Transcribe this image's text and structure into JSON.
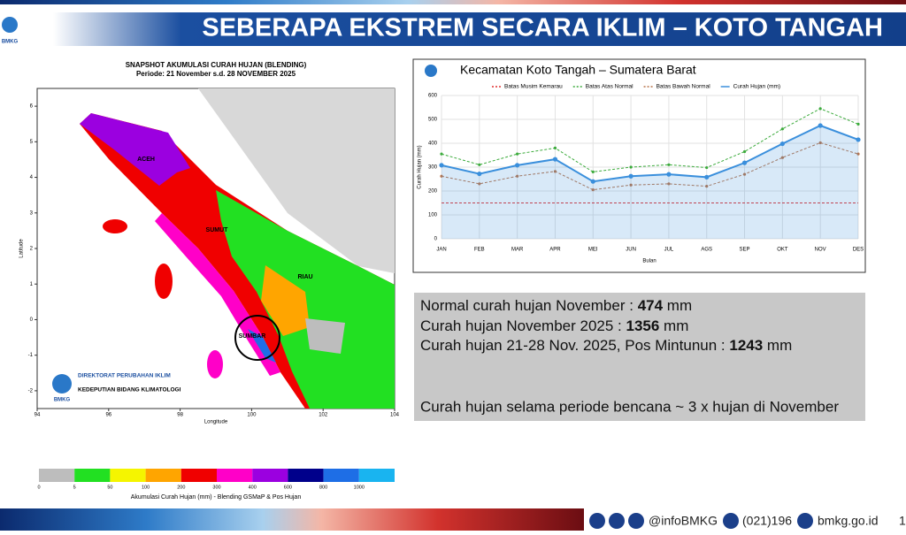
{
  "header": {
    "title": "SEBERAPA EKSTREM SECARA IKLIM – KOTO TANGAH",
    "logo": "BMKG"
  },
  "map": {
    "title": "SNAPSHOT AKUMULASI CURAH HUJAN (BLENDING)",
    "subtitle": "Periode: 21 November s.d. 28 NOVEMBER 2025",
    "x_label": "Longitude",
    "y_label": "Latitude",
    "xlim": [
      94,
      104
    ],
    "ylim": [
      -2.5,
      6.5
    ],
    "xticks": [
      94,
      96,
      98,
      100,
      102,
      104
    ],
    "yticks": [
      -2,
      -1,
      0,
      1,
      2,
      3,
      4,
      5,
      6
    ],
    "regions": [
      "ACEH",
      "SUMUT",
      "RIAU",
      "SUMBAR"
    ],
    "org_lines": [
      "DIREKTORAT PERUBAHAN IKLIM",
      "KEDEPUTIAN BIDANG KLIMATOLOGI"
    ],
    "org_logo": "BMKG",
    "colorbar": {
      "label": "Akumulasi Curah Hujan (mm) - Blending GSMaP & Pos Hujan",
      "ticks": [
        0,
        5,
        50,
        100,
        200,
        300,
        400,
        600,
        800,
        1000
      ],
      "colors": [
        "#bdbdbd",
        "#22e022",
        "#f5f500",
        "#ffa500",
        "#f00000",
        "#ff00c8",
        "#9b00e0",
        "#00008b",
        "#1e6ee6",
        "#19b4f0"
      ]
    }
  },
  "chart_data": {
    "type": "line",
    "title": "Kecamatan Koto Tangah – Sumatera Barat",
    "x_label": "Bulan",
    "y_label": "Curah Hujan (mm)",
    "categories": [
      "JAN",
      "FEB",
      "MAR",
      "APR",
      "MEI",
      "JUN",
      "JUL",
      "AGS",
      "SEP",
      "OKT",
      "NOV",
      "DES"
    ],
    "ylim": [
      0,
      600
    ],
    "yticks": [
      0,
      100,
      200,
      300,
      400,
      500,
      600
    ],
    "grid": true,
    "series": [
      {
        "name": "Batas Musim Kemarau",
        "color": "#e03030",
        "dashed": true,
        "values": [
          150,
          150,
          150,
          150,
          150,
          150,
          150,
          150,
          150,
          150,
          150,
          150
        ]
      },
      {
        "name": "Batas Atas Normal",
        "color": "#3cab3c",
        "dashed": true,
        "values": [
          355,
          310,
          355,
          380,
          280,
          300,
          310,
          298,
          365,
          460,
          545,
          480
        ]
      },
      {
        "name": "Batas Bawah Normal",
        "color": "#b8734a",
        "dashed": true,
        "values": [
          262,
          230,
          262,
          282,
          205,
          225,
          230,
          220,
          270,
          340,
          402,
          355
        ]
      },
      {
        "name": "Curah Hujan (mm)",
        "color": "#3a8fdc",
        "dashed": false,
        "area": true,
        "values": [
          308,
          272,
          308,
          333,
          240,
          262,
          270,
          258,
          318,
          398,
          474,
          415
        ]
      }
    ]
  },
  "info": {
    "lines": [
      {
        "label": "Normal curah hujan November :",
        "value": 474,
        "unit": "mm"
      },
      {
        "label": "Curah hujan November 2025 :",
        "value": 1356,
        "unit": "mm"
      },
      {
        "label": "Curah hujan 21-28 Nov. 2025, Pos Mintunun :",
        "value": 1243,
        "unit": "mm"
      }
    ],
    "note": "Curah hujan selama periode bencana ~ 3 x hujan di November"
  },
  "footer": {
    "social": "@infoBMKG",
    "phone": "(021)196",
    "web": "bmkg.go.id",
    "page": "1"
  }
}
